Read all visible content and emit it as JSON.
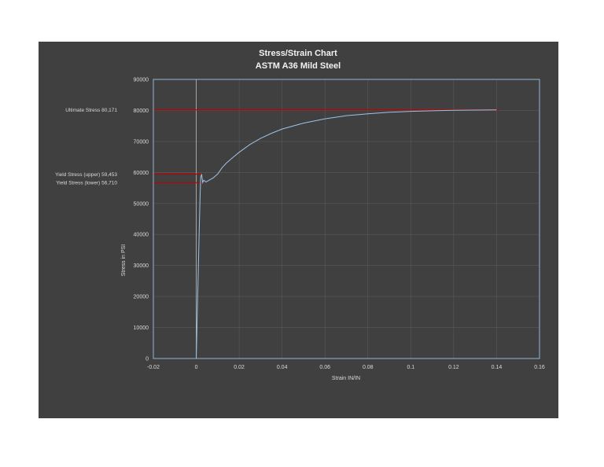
{
  "chart_data": {
    "type": "line",
    "title": "Stress/Strain Chart",
    "subtitle": "ASTM A36 Mild Steel",
    "xlabel": "Strain IN/IN",
    "ylabel": "Stress in PSI",
    "xlim": [
      -0.02,
      0.16
    ],
    "ylim": [
      0,
      90000
    ],
    "xticks": [
      "-0.02",
      "0",
      "0.02",
      "0.04",
      "0.06",
      "0.08",
      "0.1",
      "0.12",
      "0.14",
      "0.16"
    ],
    "yticks": [
      "0",
      "10000",
      "20000",
      "30000",
      "40000",
      "50000",
      "60000",
      "70000",
      "80000",
      "90000"
    ],
    "grid": true,
    "series": [
      {
        "x": [
          0,
          0.0003,
          0.0006,
          0.001,
          0.0014,
          0.0018,
          0.0021,
          0.0025,
          0.003,
          0.0035,
          0.0045,
          0.006,
          0.008,
          0.01,
          0.012,
          0.014,
          0.017,
          0.02,
          0.025,
          0.03,
          0.035,
          0.04,
          0.05,
          0.06,
          0.07,
          0.08,
          0.09,
          0.1,
          0.11,
          0.12,
          0.13,
          0.14
        ],
        "y": [
          0,
          9000,
          18000,
          30000,
          42000,
          53000,
          58500,
          59453,
          56710,
          57500,
          56900,
          57500,
          58300,
          59500,
          61500,
          63000,
          64800,
          66500,
          69000,
          71000,
          72600,
          74000,
          75900,
          77300,
          78300,
          78900,
          79400,
          79700,
          79900,
          80050,
          80120,
          80171
        ],
        "color": "#9dc3e6"
      }
    ],
    "annotations": [
      {
        "label": "Ultimate Stress 80,171",
        "value": 80171,
        "x_start": -0.02,
        "x_end": 0.141,
        "color": "#c00000"
      },
      {
        "label": "Yield Stress (upper) 59,453",
        "value": 59453,
        "x_start": -0.02,
        "x_end": 0.003,
        "color": "#c00000"
      },
      {
        "label": "Yield Stress (lower) 56,710",
        "value": 56710,
        "x_start": -0.02,
        "x_end": 0.003,
        "color": "#c00000"
      }
    ],
    "colors": {
      "background": "#404040",
      "axis": "#9dc3e6",
      "grid": "#595959",
      "zero_line": "#bfbfbf"
    }
  }
}
